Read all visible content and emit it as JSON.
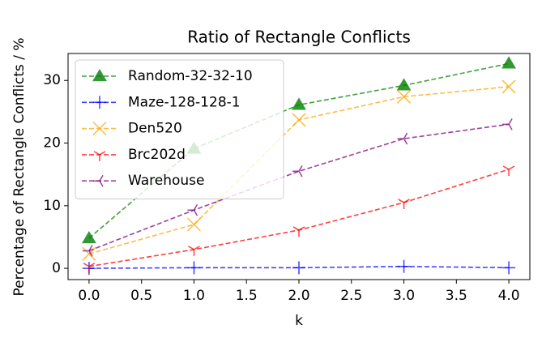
{
  "chart_data": {
    "type": "line",
    "title": "Ratio of Rectangle Conflicts",
    "x_label": "k",
    "y_label": "Percentage of Rectangle Conflicts / %",
    "x": [
      0,
      1,
      2,
      3,
      4
    ],
    "series": [
      {
        "name": "Random-32-32-10",
        "color": "#008000",
        "marker": "triangle-up",
        "values": [
          4.8,
          19.1,
          26.1,
          29.2,
          32.7
        ]
      },
      {
        "name": "Maze-128-128-1",
        "color": "#0000ff",
        "marker": "plus",
        "values": [
          0.0,
          0.1,
          0.1,
          0.3,
          0.1
        ]
      },
      {
        "name": "Den520",
        "color": "#ffa500",
        "marker": "x",
        "values": [
          2.3,
          7.0,
          23.7,
          27.4,
          29.0
        ]
      },
      {
        "name": "Brc202d",
        "color": "#ff0000",
        "marker": "tri-down",
        "values": [
          0.3,
          3.0,
          6.1,
          10.5,
          15.8
        ]
      },
      {
        "name": "Warehouse",
        "color": "#800080",
        "marker": "tri-left",
        "values": [
          2.8,
          9.3,
          15.5,
          20.7,
          23.0
        ]
      }
    ],
    "xlim": [
      -0.2,
      4.2
    ],
    "ylim": [
      -1.8,
      34.3
    ],
    "xticks": [
      {
        "value": 0,
        "label": "0.0"
      },
      0.5,
      {
        "value": 1,
        "label": "1.0"
      },
      1.5,
      {
        "value": 2,
        "label": "2.0"
      },
      2.5,
      {
        "value": 3,
        "label": "3.0"
      },
      3.5,
      {
        "value": 4,
        "label": "4.0"
      }
    ],
    "yticks": [
      0,
      10,
      20,
      30
    ],
    "line_style": "dashed",
    "grid": false,
    "legend": "upper-left"
  }
}
